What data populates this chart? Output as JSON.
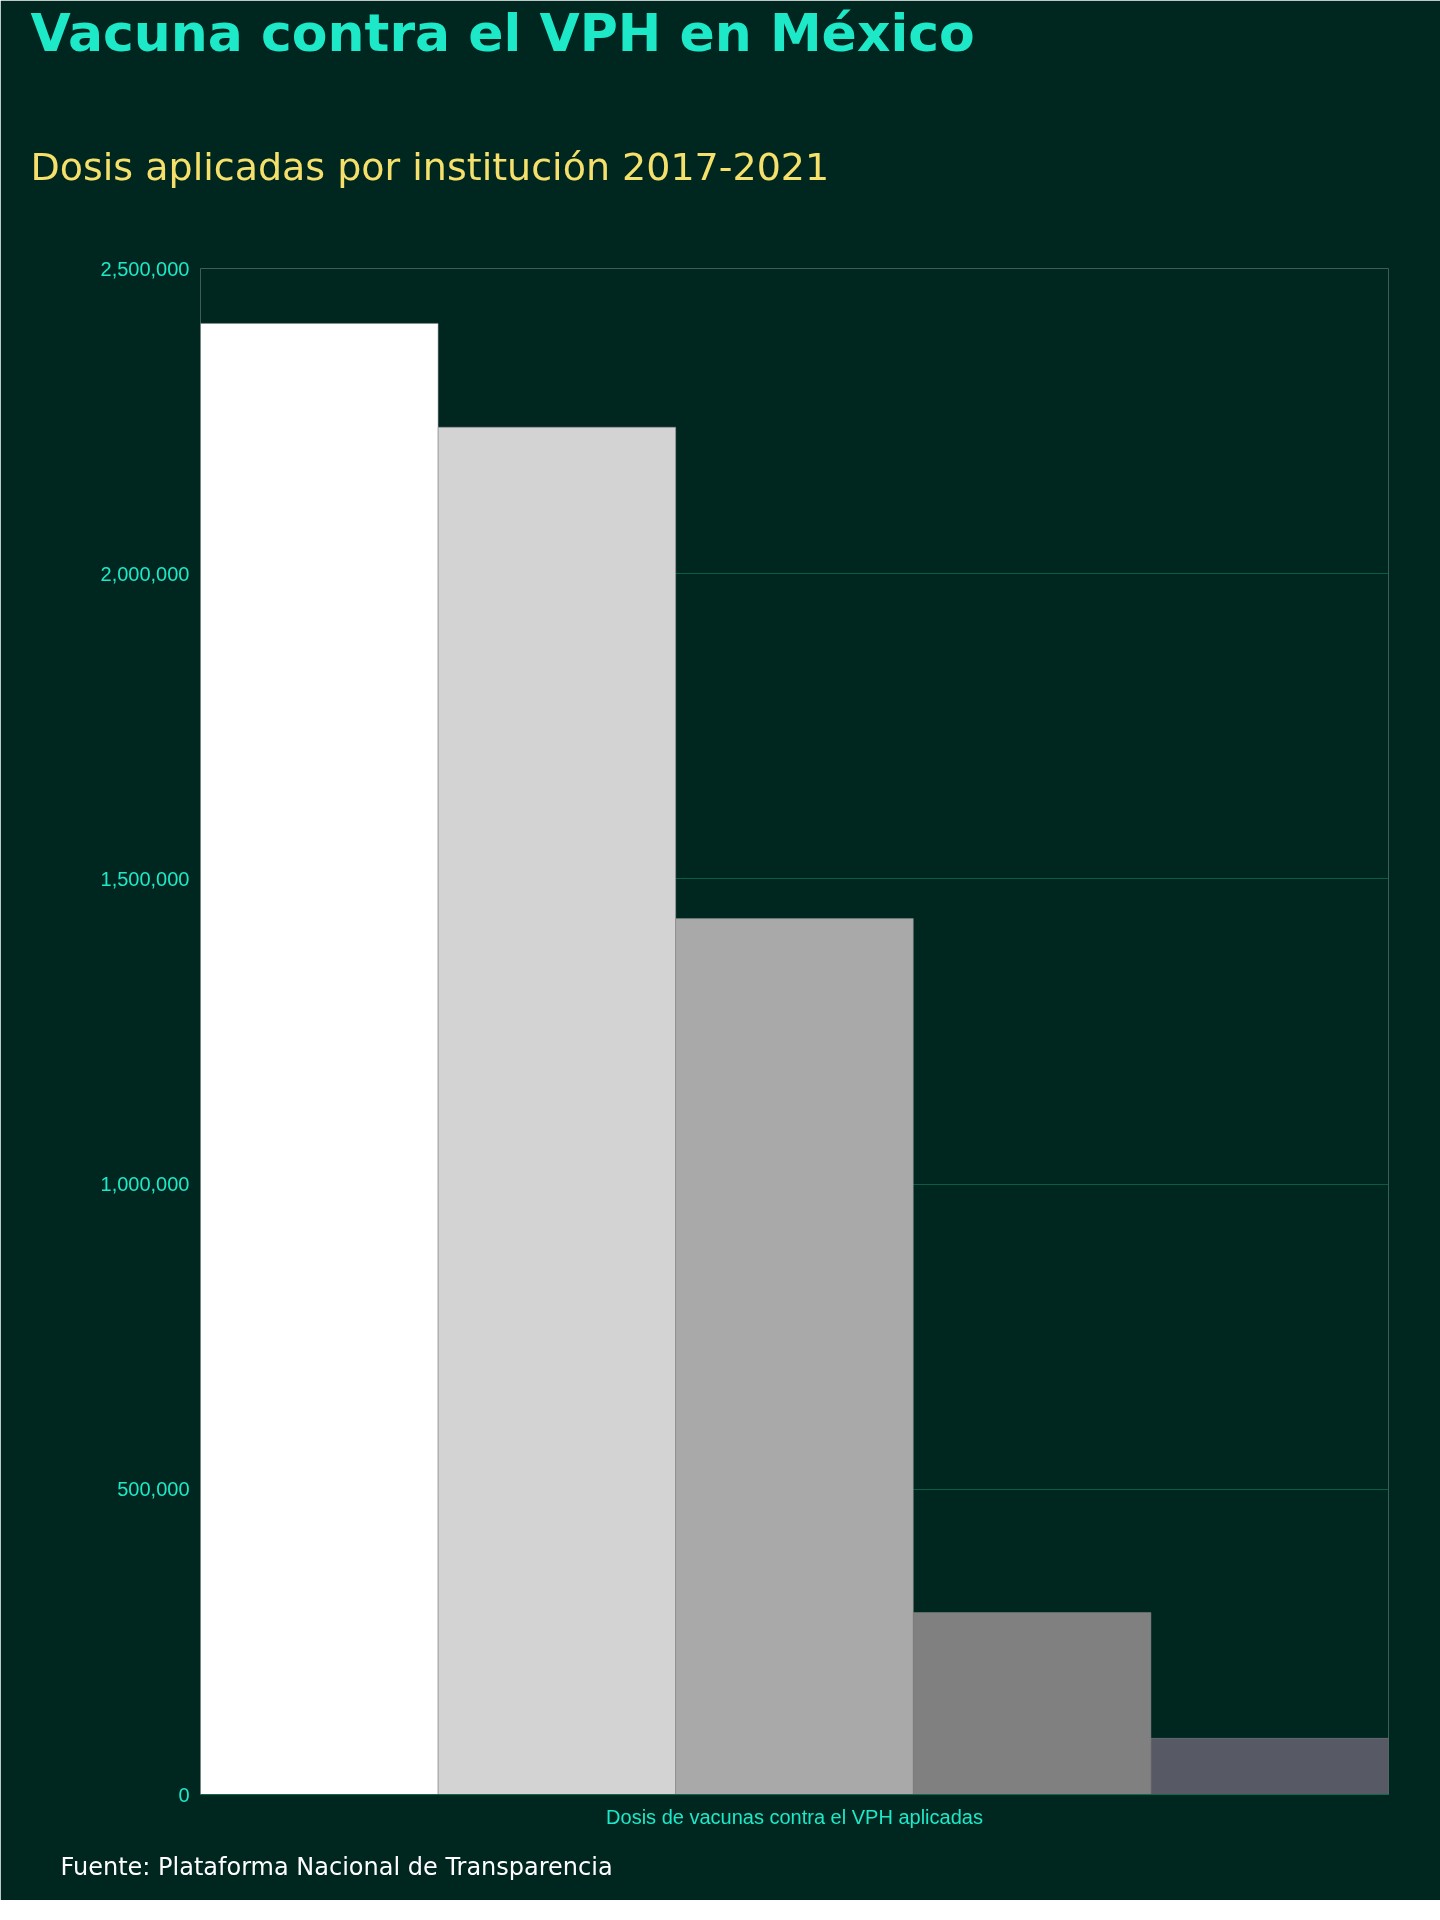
{
  "chart_data": {
    "type": "bar",
    "title": "Vacuna contra el VPH en México",
    "subtitle": "Dosis aplicadas por institución 2017-2021",
    "categories": [
      "Dosis de vacunas contra el VPH aplicadas"
    ],
    "series": [
      {
        "color": "#ffffff",
        "values": [
          2410000
        ]
      },
      {
        "color": "#d3d3d3",
        "values": [
          2240000
        ]
      },
      {
        "color": "#a9a9a9",
        "values": [
          1435000
        ]
      },
      {
        "color": "#808080",
        "values": [
          298000
        ]
      },
      {
        "color": "#575a64",
        "values": [
          92000
        ]
      }
    ],
    "ylim": [
      0,
      2500000
    ],
    "yticks": [
      0,
      {
        "value": 500000,
        "label": "500,000"
      },
      {
        "value": 1000000,
        "label": "1,000,000"
      },
      {
        "value": 1500000,
        "label": "1,500,000"
      },
      {
        "value": 2000000,
        "label": "2,000,000"
      },
      {
        "value": 2500000,
        "label": "2,500,000"
      }
    ],
    "grid": "y",
    "annotations": [
      "Fuente: Plataforma Nacional de Transparencia"
    ]
  }
}
